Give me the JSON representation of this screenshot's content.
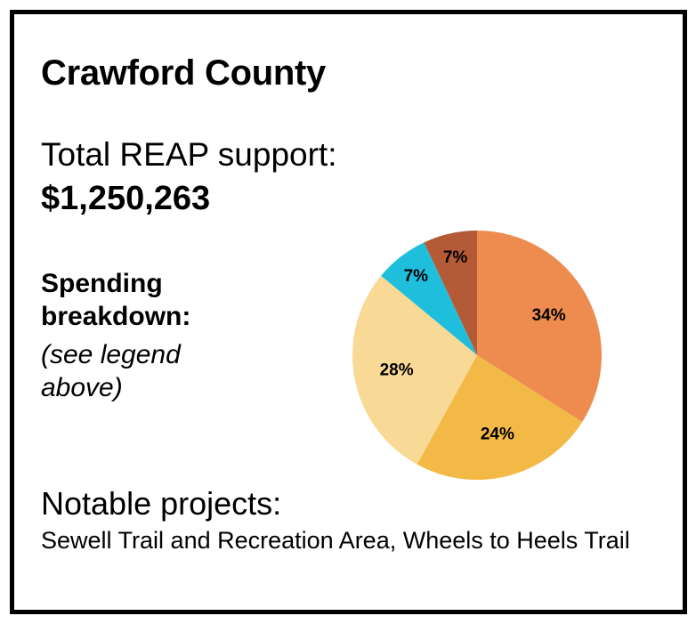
{
  "county_title": "Crawford County",
  "total": {
    "label": "Total REAP support:",
    "value": "$1,250,263"
  },
  "spending": {
    "label": "Spending breakdown:",
    "note": "(see legend above)"
  },
  "notable": {
    "label": "Notable projects:",
    "text": "Sewell Trail and Recreation Area, Wheels to Heels Trail"
  },
  "chart_data": {
    "type": "pie",
    "values": [
      34,
      24,
      28,
      7,
      7
    ],
    "labels": [
      "34%",
      "24%",
      "28%",
      "7%",
      "7%"
    ],
    "colors": [
      "#EE8B4E",
      "#F3B947",
      "#F8D995",
      "#1FBEDC",
      "#B55A37"
    ],
    "start": "top, clockwise",
    "legend": "none shown"
  }
}
